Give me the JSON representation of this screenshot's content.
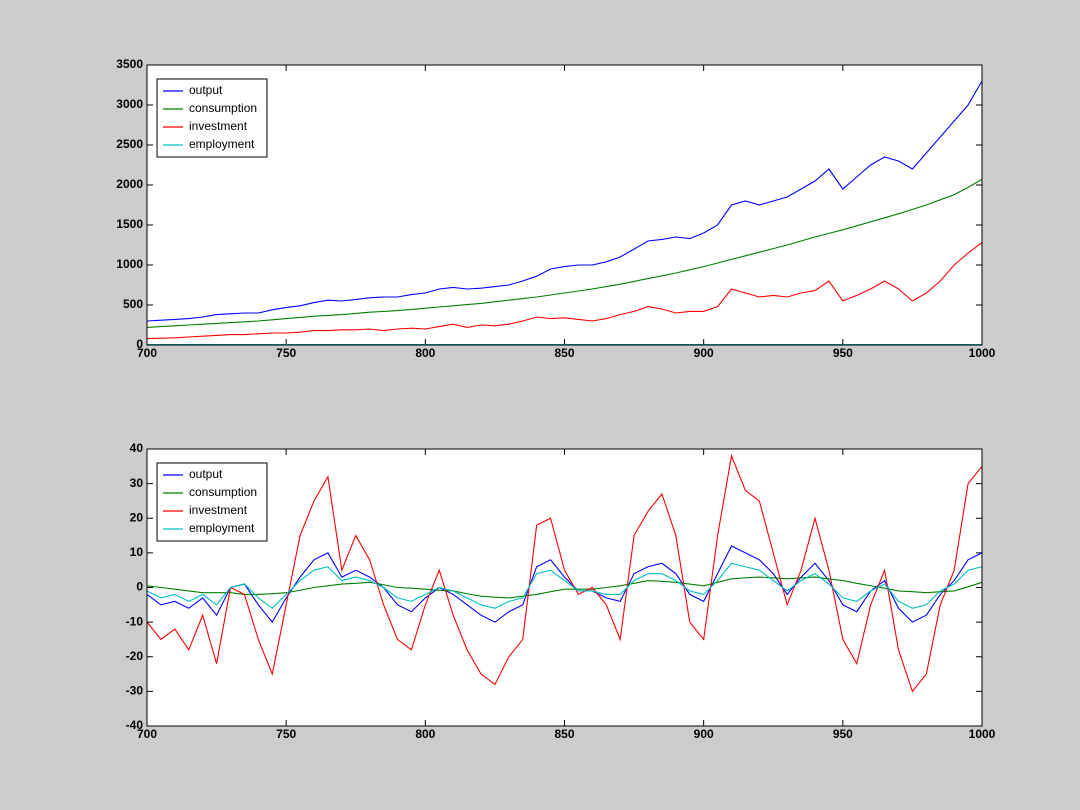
{
  "chart_data": [
    {
      "type": "line",
      "x": [
        700,
        705,
        710,
        715,
        720,
        725,
        730,
        735,
        740,
        745,
        750,
        755,
        760,
        765,
        770,
        775,
        780,
        785,
        790,
        795,
        800,
        805,
        810,
        815,
        820,
        825,
        830,
        835,
        840,
        845,
        850,
        855,
        860,
        865,
        870,
        875,
        880,
        885,
        890,
        895,
        900,
        905,
        910,
        915,
        920,
        925,
        930,
        935,
        940,
        945,
        950,
        955,
        960,
        965,
        970,
        975,
        980,
        985,
        990,
        995,
        1000
      ],
      "series": [
        {
          "name": "output",
          "color": "#0000ff",
          "values": [
            300,
            310,
            320,
            330,
            350,
            380,
            390,
            400,
            400,
            440,
            470,
            490,
            530,
            560,
            550,
            570,
            590,
            600,
            600,
            630,
            650,
            700,
            720,
            700,
            710,
            730,
            750,
            800,
            860,
            950,
            980,
            1000,
            1000,
            1040,
            1100,
            1200,
            1300,
            1320,
            1350,
            1330,
            1400,
            1500,
            1750,
            1800,
            1750,
            1800,
            1850,
            1950,
            2050,
            2200,
            1950,
            2100,
            2250,
            2350,
            2300,
            2200,
            2400,
            2600,
            2800,
            3000,
            3300
          ]
        },
        {
          "name": "consumption",
          "color": "#008000",
          "values": [
            220,
            230,
            240,
            250,
            260,
            270,
            280,
            290,
            300,
            315,
            330,
            345,
            360,
            370,
            380,
            395,
            410,
            420,
            430,
            445,
            460,
            475,
            490,
            505,
            520,
            540,
            560,
            580,
            600,
            625,
            650,
            675,
            700,
            730,
            760,
            795,
            830,
            865,
            900,
            940,
            980,
            1025,
            1070,
            1115,
            1160,
            1205,
            1250,
            1300,
            1350,
            1395,
            1440,
            1490,
            1540,
            1590,
            1640,
            1695,
            1750,
            1815,
            1880,
            1970,
            2070
          ]
        },
        {
          "name": "investment",
          "color": "#ff0000",
          "values": [
            80,
            85,
            90,
            100,
            110,
            120,
            130,
            130,
            140,
            150,
            150,
            160,
            180,
            180,
            190,
            190,
            200,
            180,
            200,
            210,
            200,
            230,
            260,
            220,
            250,
            240,
            260,
            300,
            350,
            330,
            340,
            320,
            300,
            330,
            380,
            420,
            480,
            450,
            400,
            420,
            420,
            480,
            700,
            650,
            600,
            620,
            600,
            650,
            680,
            800,
            550,
            620,
            700,
            800,
            700,
            550,
            650,
            800,
            1000,
            1150,
            1280
          ]
        },
        {
          "name": "employment",
          "color": "#00bfbf",
          "values": [
            5,
            5,
            5,
            5,
            5,
            5,
            5,
            5,
            5,
            5,
            5,
            5,
            5,
            5,
            5,
            5,
            5,
            5,
            5,
            5,
            5,
            5,
            5,
            5,
            5,
            5,
            5,
            5,
            5,
            5,
            5,
            5,
            5,
            5,
            5,
            5,
            5,
            5,
            5,
            5,
            5,
            5,
            5,
            5,
            5,
            5,
            5,
            5,
            5,
            5,
            5,
            5,
            5,
            5,
            5,
            5,
            5,
            5,
            5,
            5,
            5
          ]
        }
      ],
      "xlim": [
        700,
        1000
      ],
      "xticks": [
        700,
        750,
        800,
        850,
        900,
        950,
        1000
      ],
      "ylim": [
        0,
        3500
      ],
      "yticks": [
        0,
        500,
        1000,
        1500,
        2000,
        2500,
        3000,
        3500
      ],
      "grid": false,
      "legend": "upper-left"
    },
    {
      "type": "line",
      "x": [
        700,
        705,
        710,
        715,
        720,
        725,
        730,
        735,
        740,
        745,
        750,
        755,
        760,
        765,
        770,
        775,
        780,
        785,
        790,
        795,
        800,
        805,
        810,
        815,
        820,
        825,
        830,
        835,
        840,
        845,
        850,
        855,
        860,
        865,
        870,
        875,
        880,
        885,
        890,
        895,
        900,
        905,
        910,
        915,
        920,
        925,
        930,
        935,
        940,
        945,
        950,
        955,
        960,
        965,
        970,
        975,
        980,
        985,
        990,
        995,
        1000
      ],
      "series": [
        {
          "name": "output",
          "color": "#0000ff",
          "values": [
            -2,
            -5,
            -4,
            -6,
            -3,
            -8,
            0,
            1,
            -5,
            -10,
            -3,
            3,
            8,
            10,
            3,
            5,
            3,
            0,
            -5,
            -7,
            -3,
            0,
            -2,
            -5,
            -8,
            -10,
            -7,
            -5,
            6,
            8,
            3,
            -1,
            -1,
            -3,
            -4,
            4,
            6,
            7,
            4,
            -2,
            -4,
            4,
            12,
            10,
            8,
            4,
            -2,
            3,
            7,
            2,
            -5,
            -7,
            -1,
            2,
            -6,
            -10,
            -8,
            -2,
            2,
            8,
            10
          ]
        },
        {
          "name": "consumption",
          "color": "#008000",
          "values": [
            0.5,
            0,
            -0.5,
            -1,
            -1.5,
            -1.5,
            -1.5,
            -2,
            -2,
            -1.8,
            -1.5,
            -0.8,
            0,
            0.5,
            1,
            1.2,
            1.5,
            0.8,
            0,
            -0.2,
            -0.5,
            -0.8,
            -1,
            -1.8,
            -2.5,
            -2.8,
            -3,
            -2.5,
            -2,
            -1.2,
            -0.5,
            -0.5,
            -0.5,
            0,
            0.5,
            1.2,
            2,
            1.8,
            1.5,
            1,
            0.5,
            1.5,
            2.5,
            2.8,
            3,
            2.8,
            2.5,
            2.8,
            3,
            2.5,
            2,
            1.2,
            0.5,
            -0.2,
            -1,
            -1.2,
            -1.5,
            -1.2,
            -1,
            0.2,
            1.5
          ]
        },
        {
          "name": "investment",
          "color": "#ff0000",
          "values": [
            -10,
            -15,
            -12,
            -18,
            -8,
            -22,
            0,
            -2,
            -15,
            -25,
            -5,
            15,
            25,
            32,
            5,
            15,
            8,
            -5,
            -15,
            -18,
            -5,
            5,
            -8,
            -18,
            -25,
            -28,
            -20,
            -15,
            18,
            20,
            5,
            -2,
            0,
            -5,
            -15,
            15,
            22,
            27,
            15,
            -10,
            -15,
            15,
            38,
            28,
            25,
            10,
            -5,
            5,
            20,
            5,
            -15,
            -22,
            -5,
            5,
            -18,
            -30,
            -25,
            -5,
            5,
            30,
            35
          ]
        },
        {
          "name": "employment",
          "color": "#00bfbf",
          "values": [
            -1,
            -3,
            -2,
            -4,
            -2,
            -5,
            0,
            1,
            -3,
            -6,
            -2,
            2,
            5,
            6,
            2,
            3,
            2,
            0,
            -3,
            -4,
            -2,
            0,
            -1,
            -3,
            -5,
            -6,
            -4,
            -3,
            4,
            5,
            2,
            -1,
            -1,
            -2,
            -2,
            2,
            4,
            4,
            2,
            -1,
            -2,
            2,
            7,
            6,
            5,
            2,
            -1,
            2,
            4,
            1,
            -3,
            -4,
            -1,
            1,
            -4,
            -6,
            -5,
            -1,
            1,
            5,
            6
          ]
        }
      ],
      "xlim": [
        700,
        1000
      ],
      "xticks": [
        700,
        750,
        800,
        850,
        900,
        950,
        1000
      ],
      "ylim": [
        -40,
        40
      ],
      "yticks": [
        -40,
        -30,
        -20,
        -10,
        0,
        10,
        20,
        30,
        40
      ],
      "grid": false,
      "legend": "upper-left"
    }
  ]
}
